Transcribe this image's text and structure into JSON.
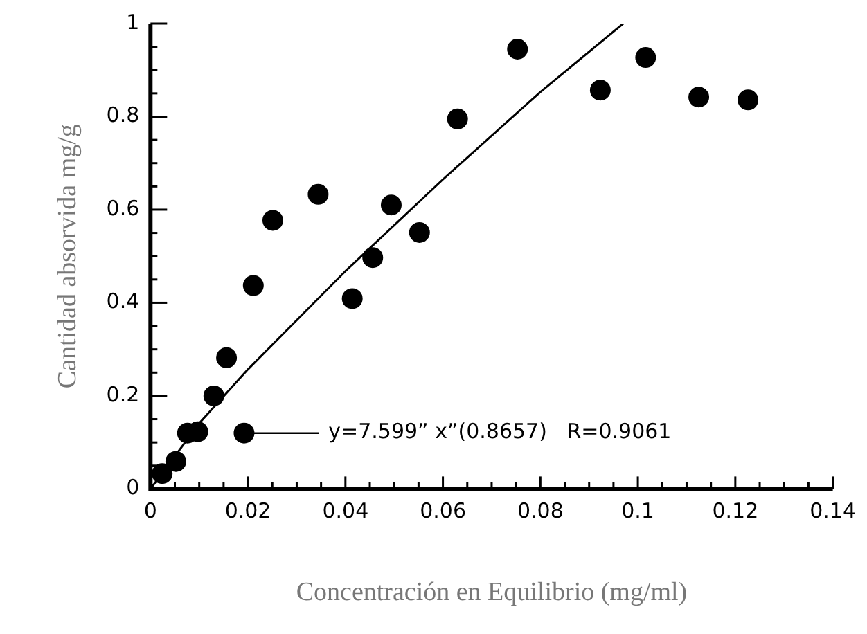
{
  "chart_data": {
    "type": "scatter",
    "xlabel": "Concentración en Equilibrio (mg/ml)",
    "ylabel": "Cantidad absorvida mg/g",
    "xlim": [
      0,
      0.14
    ],
    "ylim": [
      0,
      1
    ],
    "xticks": [
      0,
      {
        "value": 0.005,
        "label": null
      },
      {
        "value": 0.01,
        "label": null
      },
      {
        "value": 0.015,
        "label": null
      },
      0.02,
      {
        "value": 0.025,
        "label": null
      },
      {
        "value": 0.03,
        "label": null
      },
      {
        "value": 0.035,
        "label": null
      },
      0.04,
      {
        "value": 0.045,
        "label": null
      },
      {
        "value": 0.05,
        "label": null
      },
      {
        "value": 0.055,
        "label": null
      },
      0.06,
      {
        "value": 0.065,
        "label": null
      },
      {
        "value": 0.07,
        "label": null
      },
      {
        "value": 0.075,
        "label": null
      },
      0.08,
      {
        "value": 0.085,
        "label": null
      },
      {
        "value": 0.09,
        "label": null
      },
      {
        "value": 0.095,
        "label": null
      },
      0.1,
      {
        "value": 0.105,
        "label": null
      },
      {
        "value": 0.11,
        "label": null
      },
      {
        "value": 0.115,
        "label": null
      },
      0.12,
      {
        "value": 0.125,
        "label": null
      },
      {
        "value": 0.13,
        "label": null
      },
      {
        "value": 0.135,
        "label": null
      },
      0.14
    ],
    "yticks": [
      0,
      {
        "value": 0.05,
        "label": null
      },
      {
        "value": 0.1,
        "label": null
      },
      {
        "value": 0.15,
        "label": null
      },
      0.2,
      {
        "value": 0.25,
        "label": null
      },
      {
        "value": 0.3,
        "label": null
      },
      {
        "value": 0.35,
        "label": null
      },
      0.4,
      {
        "value": 0.45,
        "label": null
      },
      {
        "value": 0.5,
        "label": null
      },
      {
        "value": 0.55,
        "label": null
      },
      0.6,
      {
        "value": 0.65,
        "label": null
      },
      {
        "value": 0.7,
        "label": null
      },
      {
        "value": 0.75,
        "label": null
      },
      0.8,
      {
        "value": 0.85,
        "label": null
      },
      {
        "value": 0.9,
        "label": null
      },
      {
        "value": 0.95,
        "label": null
      },
      1
    ],
    "grid": false,
    "legend": false,
    "marker": "circle",
    "series": [
      {
        "color": "#000000",
        "x": [
          0.0024,
          0.0052,
          0.0076,
          0.0097,
          0.013,
          0.0156,
          0.0192,
          0.0211,
          0.0251,
          0.0344,
          0.0414,
          0.0456,
          0.0494,
          0.0552,
          0.063,
          0.0753,
          0.0923,
          0.1016,
          0.1125,
          0.1226
        ],
        "values": [
          0.033,
          0.059,
          0.12,
          0.123,
          0.2,
          0.282,
          0.12,
          0.437,
          0.577,
          0.633,
          0.409,
          0.497,
          0.61,
          0.551,
          0.795,
          0.945,
          0.857,
          0.927,
          0.842,
          0.836
        ]
      },
      {
        "type": "line",
        "color": "#000000",
        "marker": "none",
        "x": [
          0,
          0.01,
          0.02,
          0.04,
          0.06,
          0.08,
          0.097
        ],
        "values": [
          0,
          0.141,
          0.257,
          0.468,
          0.665,
          0.853,
          1.0
        ]
      }
    ],
    "annotations": [
      "y=7.599” x”(0.8657)   R=0.9061"
    ]
  }
}
